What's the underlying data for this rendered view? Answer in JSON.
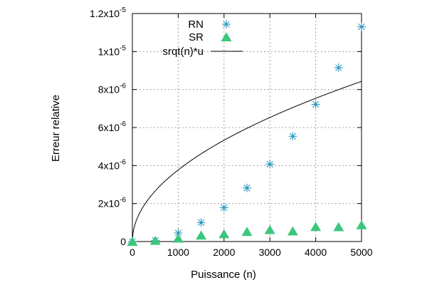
{
  "chart_data": {
    "type": "scatter",
    "xlabel": "Puissance (n)",
    "ylabel": "Erreur relative",
    "xlim": [
      0,
      5000
    ],
    "ylim": [
      0,
      1.2e-05
    ],
    "x_ticks": [
      {
        "value": 0,
        "label": "0"
      },
      {
        "value": 1000,
        "label": "1000"
      },
      {
        "value": 2000,
        "label": "2000"
      },
      {
        "value": 3000,
        "label": "3000"
      },
      {
        "value": 4000,
        "label": "4000"
      },
      {
        "value": 5000,
        "label": "5000"
      }
    ],
    "y_ticks": [
      {
        "value": 0,
        "mantissa": "0",
        "exponent": ""
      },
      {
        "value": 2e-06,
        "mantissa": "2x10",
        "exponent": "-6"
      },
      {
        "value": 4e-06,
        "mantissa": "4x10",
        "exponent": "-6"
      },
      {
        "value": 6e-06,
        "mantissa": "6x10",
        "exponent": "-6"
      },
      {
        "value": 8e-06,
        "mantissa": "8x10",
        "exponent": "-6"
      },
      {
        "value": 1e-05,
        "mantissa": "1x10",
        "exponent": "-5"
      },
      {
        "value": 1.2e-05,
        "mantissa": "1.2x10",
        "exponent": "-5"
      }
    ],
    "grid": true,
    "legend_position": "top-left",
    "series": [
      {
        "name": "RN",
        "marker": "star",
        "color": "#1a8fb8",
        "x": [
          0,
          500,
          1000,
          1500,
          2000,
          2500,
          3000,
          3500,
          4000,
          4500,
          5000
        ],
        "y": [
          0,
          5e-08,
          4.5e-07,
          1e-06,
          1.78e-06,
          2.82e-06,
          4.07e-06,
          5.54e-06,
          7.22e-06,
          9.15e-06,
          1.13e-05
        ]
      },
      {
        "name": "SR",
        "marker": "triangle",
        "color": "#3cc77d",
        "x": [
          0,
          500,
          1000,
          1500,
          2000,
          2500,
          3000,
          3500,
          4000,
          4500,
          5000
        ],
        "y": [
          0,
          5e-08,
          1.7e-07,
          3.3e-07,
          4e-07,
          5.2e-07,
          6.2e-07,
          5.5e-07,
          7.8e-07,
          7.7e-07,
          8.7e-07
        ]
      },
      {
        "name": "srqt(n)*u",
        "marker": "line",
        "color": "#000000",
        "function": "sqrt(n)*u",
        "u": 1.19209e-07
      }
    ]
  }
}
